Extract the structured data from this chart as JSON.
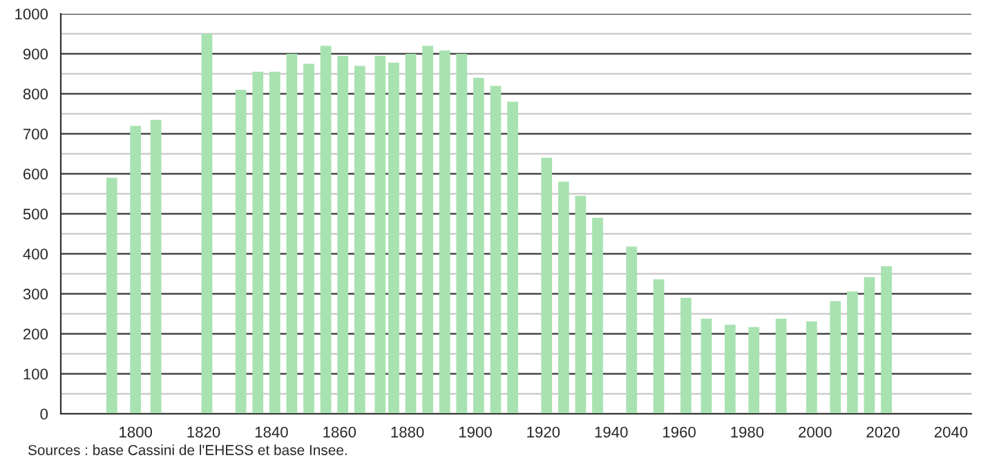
{
  "chart_data": {
    "type": "bar",
    "x": [
      1793,
      1800,
      1806,
      1821,
      1831,
      1836,
      1841,
      1846,
      1851,
      1856,
      1861,
      1866,
      1872,
      1876,
      1881,
      1886,
      1891,
      1896,
      1901,
      1906,
      1911,
      1921,
      1926,
      1931,
      1936,
      1946,
      1954,
      1962,
      1968,
      1975,
      1982,
      1990,
      1999,
      2006,
      2011,
      2016,
      2021
    ],
    "values": [
      590,
      720,
      735,
      950,
      810,
      855,
      855,
      900,
      875,
      920,
      895,
      870,
      895,
      878,
      900,
      920,
      908,
      900,
      840,
      820,
      780,
      640,
      580,
      545,
      490,
      418,
      336,
      290,
      238,
      223,
      217,
      238,
      231,
      282,
      306,
      342,
      369
    ],
    "color": "#a8e2b0",
    "xlim": [
      1778,
      2046
    ],
    "xticks": [
      1800,
      1820,
      1840,
      1860,
      1880,
      1900,
      1920,
      1940,
      1960,
      1980,
      2000,
      2020,
      2040
    ],
    "ylim": [
      0,
      1000
    ],
    "yticks": [
      0,
      {
        "value": 50,
        "label": null
      },
      100,
      {
        "value": 150,
        "label": null
      },
      200,
      {
        "value": 250,
        "label": null
      },
      300,
      {
        "value": 350,
        "label": null
      },
      400,
      {
        "value": 450,
        "label": null
      },
      500,
      {
        "value": 550,
        "label": null
      },
      600,
      {
        "value": 650,
        "label": null
      },
      700,
      {
        "value": 750,
        "label": null
      },
      800,
      {
        "value": 850,
        "label": null
      },
      900,
      {
        "value": 950,
        "label": null
      },
      1000
    ],
    "grid": "y",
    "annotations": [
      "Sources : base Cassini de l'EHESS et base Insee."
    ]
  }
}
